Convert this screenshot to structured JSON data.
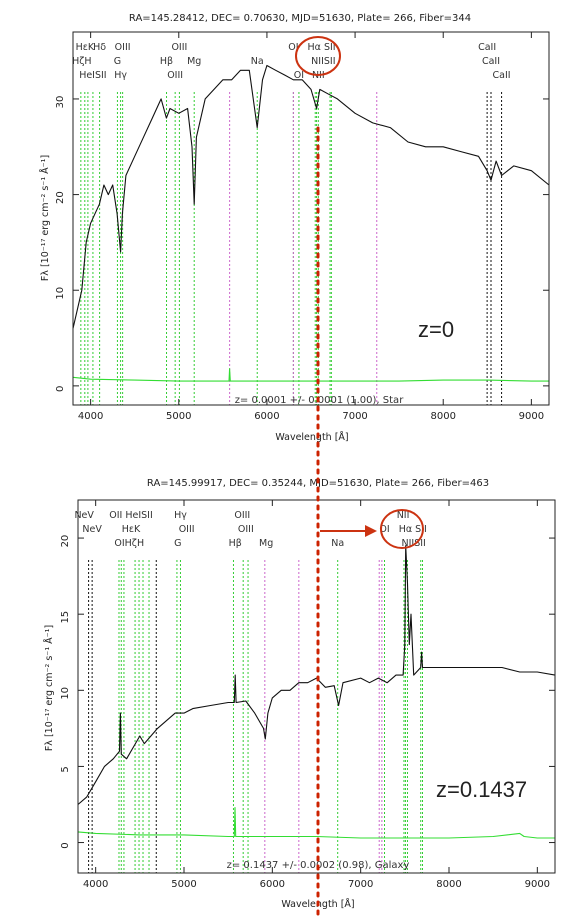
{
  "chart_data": [
    {
      "type": "line",
      "title": "RA=145.28412, DEC= 0.70630, MJD=51630, Plate= 266, Fiber=344",
      "xlabel": "Wavelength [Å]",
      "ylabel": "Fλ [10⁻¹⁷ erg cm⁻² s⁻¹ Å⁻¹]",
      "xlim": [
        3800,
        9200
      ],
      "ylim": [
        -2,
        37
      ],
      "x_ticks": [
        "4000",
        "5000",
        "6000",
        "7000",
        "8000",
        "9000"
      ],
      "x_tick_values": [
        4000,
        5000,
        6000,
        7000,
        8000,
        9000
      ],
      "y_ticks": [
        "0",
        "10",
        "20",
        "30"
      ],
      "y_tick_values": [
        0,
        10,
        20,
        30
      ],
      "fit_label": "z= 0.0001 +/- 0.0001 (1.00), Star",
      "annotation": "z=0",
      "series": [
        {
          "color": "#111111",
          "x": [
            3800,
            3850,
            3900,
            3950,
            4000,
            4050,
            4100,
            4150,
            4200,
            4250,
            4300,
            4340,
            4360,
            4400,
            4500,
            4600,
            4700,
            4800,
            4860,
            4900,
            5000,
            5100,
            5150,
            5175,
            5200,
            5300,
            5400,
            5500,
            5600,
            5700,
            5800,
            5890,
            5950,
            6000,
            6100,
            6200,
            6300,
            6400,
            6500,
            6563,
            6600,
            6700,
            6800,
            7000,
            7200,
            7400,
            7600,
            7800,
            8000,
            8200,
            8400,
            8498,
            8542,
            8600,
            8662,
            8800,
            9000,
            9200
          ],
          "y": [
            6,
            8,
            10,
            15,
            17,
            18,
            19,
            21,
            20,
            21,
            18,
            14,
            18,
            22,
            24,
            26,
            28,
            30,
            28,
            29,
            28.5,
            29,
            25,
            19,
            26,
            30,
            31,
            32,
            32,
            33,
            33,
            27,
            32,
            33.5,
            33,
            32.5,
            32,
            32,
            31,
            29,
            31,
            30.5,
            30,
            28.5,
            27.5,
            27,
            25.5,
            25,
            25,
            24.5,
            24,
            22.5,
            21.5,
            23.5,
            22,
            23,
            22.5,
            21
          ]
        },
        {
          "color": "#33dd33",
          "x": [
            3800,
            4000,
            4500,
            5000,
            5500,
            5570,
            5577,
            5585,
            6000,
            6300,
            6500,
            7000,
            7500,
            8000,
            8500,
            9000,
            9200
          ],
          "y": [
            0.9,
            0.7,
            0.6,
            0.5,
            0.5,
            0.5,
            1.8,
            0.5,
            0.5,
            0.5,
            0.5,
            0.5,
            0.5,
            0.6,
            0.6,
            0.5,
            0.5
          ]
        }
      ],
      "line_markers": [
        {
          "x": 3889,
          "color": "#33cc33"
        },
        {
          "x": 3934,
          "color": "#33cc33"
        },
        {
          "x": 3969,
          "color": "#33cc33"
        },
        {
          "x": 4026,
          "color": "#33cc33"
        },
        {
          "x": 4102,
          "color": "#33cc33"
        },
        {
          "x": 4304,
          "color": "#33cc33"
        },
        {
          "x": 4340,
          "color": "#33cc33"
        },
        {
          "x": 4363,
          "color": "#33cc33"
        },
        {
          "x": 4861,
          "color": "#33cc33"
        },
        {
          "x": 4959,
          "color": "#33cc33"
        },
        {
          "x": 5007,
          "color": "#33cc33"
        },
        {
          "x": 5175,
          "color": "#33cc33"
        },
        {
          "x": 5577,
          "color": "#cc66cc"
        },
        {
          "x": 5890,
          "color": "#33cc33"
        },
        {
          "x": 6300,
          "color": "#33cc33"
        },
        {
          "x": 6363,
          "color": "#33cc33"
        },
        {
          "x": 6548,
          "color": "#33cc33"
        },
        {
          "x": 6563,
          "color": "#33cc33"
        },
        {
          "x": 6583,
          "color": "#33cc33"
        },
        {
          "x": 6716,
          "color": "#33cc33"
        },
        {
          "x": 6731,
          "color": "#33cc33"
        },
        {
          "x": 6300,
          "color": "#cc66cc"
        },
        {
          "x": 7246,
          "color": "#cc66cc"
        },
        {
          "x": 8498,
          "color": "#111111"
        },
        {
          "x": 8542,
          "color": "#111111"
        },
        {
          "x": 8662,
          "color": "#111111"
        }
      ],
      "line_labels": [
        {
          "text": "HεK",
          "x": 3935,
          "row": 1
        },
        {
          "text": "Hδ",
          "x": 4102,
          "row": 1
        },
        {
          "text": "OIII",
          "x": 4363,
          "row": 1
        },
        {
          "text": "OIII",
          "x": 5007,
          "row": 1
        },
        {
          "text": "OI",
          "x": 6300,
          "row": 1
        },
        {
          "text": "Hα SII",
          "x": 6620,
          "row": 1
        },
        {
          "text": "CaII",
          "x": 8498,
          "row": 1
        },
        {
          "text": "HζH",
          "x": 3900,
          "row": 2
        },
        {
          "text": "G",
          "x": 4304,
          "row": 2
        },
        {
          "text": "Hβ",
          "x": 4861,
          "row": 2
        },
        {
          "text": "Mg",
          "x": 5175,
          "row": 2
        },
        {
          "text": "Na",
          "x": 5890,
          "row": 2
        },
        {
          "text": "NIISII",
          "x": 6640,
          "row": 2
        },
        {
          "text": "CaII",
          "x": 8542,
          "row": 2
        },
        {
          "text": "HeISII",
          "x": 4026,
          "row": 3
        },
        {
          "text": "Hγ",
          "x": 4340,
          "row": 3
        },
        {
          "text": "OIII",
          "x": 4959,
          "row": 3
        },
        {
          "text": "OI",
          "x": 6363,
          "row": 3
        },
        {
          "text": "NII",
          "x": 6583,
          "row": 3
        },
        {
          "text": "CaII",
          "x": 8662,
          "row": 3
        }
      ]
    },
    {
      "type": "line",
      "title": "RA=145.99917, DEC= 0.35244, MJD=51630, Plate= 266, Fiber=463",
      "xlabel": "Wavelength [Å]",
      "ylabel": "Fλ [10⁻¹⁷ erg cm⁻² s⁻¹ Å⁻¹]",
      "xlim": [
        3800,
        9200
      ],
      "ylim": [
        -2,
        22.5
      ],
      "x_ticks": [
        "4000",
        "5000",
        "6000",
        "7000",
        "8000",
        "9000"
      ],
      "x_tick_values": [
        4000,
        5000,
        6000,
        7000,
        8000,
        9000
      ],
      "y_ticks": [
        "0",
        "5",
        "10",
        "15",
        "20"
      ],
      "y_tick_values": [
        0,
        5,
        10,
        15,
        20
      ],
      "fit_label": "z= 0.1437 +/- 0.0002 (0.98), Galaxy",
      "annotation": "z=0.1437",
      "series": [
        {
          "color": "#111111",
          "x": [
            3800,
            3900,
            4000,
            4100,
            4200,
            4270,
            4280,
            4290,
            4350,
            4450,
            4500,
            4550,
            4700,
            4900,
            5000,
            5100,
            5300,
            5500,
            5570,
            5580,
            5590,
            5700,
            5800,
            5900,
            5920,
            5950,
            6000,
            6100,
            6200,
            6300,
            6400,
            6500,
            6600,
            6700,
            6750,
            6800,
            7000,
            7100,
            7200,
            7300,
            7400,
            7480,
            7500,
            7510,
            7530,
            7550,
            7570,
            7600,
            7680,
            7690,
            7700,
            7800,
            8000,
            8200,
            8400,
            8600,
            8800,
            9000,
            9200
          ],
          "y": [
            2.5,
            3,
            4,
            5,
            5.5,
            6,
            8.5,
            5.8,
            5.5,
            6.5,
            7,
            6.5,
            7.5,
            8.5,
            8.5,
            8.8,
            9,
            9.2,
            9.2,
            11,
            9.2,
            9.3,
            8.5,
            7.5,
            6.8,
            8.5,
            9.5,
            10,
            10,
            10.5,
            10.5,
            10.8,
            10.2,
            10.3,
            9,
            10.5,
            10.8,
            10.5,
            10.8,
            10.5,
            11,
            11,
            13,
            19.5,
            17,
            13,
            15,
            11,
            11.5,
            12.5,
            11.5,
            11.5,
            11.5,
            11.5,
            11.5,
            11.5,
            11.2,
            11.2,
            11
          ]
        },
        {
          "color": "#33dd33",
          "x": [
            3800,
            4000,
            4500,
            5000,
            5500,
            5570,
            5577,
            5585,
            6000,
            6500,
            7000,
            7500,
            8000,
            8500,
            8800,
            8850,
            9000,
            9200
          ],
          "y": [
            0.7,
            0.6,
            0.5,
            0.5,
            0.4,
            0.4,
            2.3,
            0.4,
            0.4,
            0.4,
            0.3,
            0.3,
            0.3,
            0.4,
            0.6,
            0.4,
            0.3,
            0.3
          ]
        }
      ],
      "line_markers": [
        {
          "x": 3920,
          "color": "#111111"
        },
        {
          "x": 3960,
          "color": "#111111"
        },
        {
          "x": 4264,
          "color": "#33cc33"
        },
        {
          "x": 4290,
          "color": "#33cc33"
        },
        {
          "x": 4320,
          "color": "#33cc33"
        },
        {
          "x": 4446,
          "color": "#33cc33"
        },
        {
          "x": 4491,
          "color": "#33cc33"
        },
        {
          "x": 4536,
          "color": "#33cc33"
        },
        {
          "x": 4604,
          "color": "#33cc33"
        },
        {
          "x": 4686,
          "color": "#111111"
        },
        {
          "x": 4920,
          "color": "#33cc33"
        },
        {
          "x": 4960,
          "color": "#33cc33"
        },
        {
          "x": 5560,
          "color": "#33cc33"
        },
        {
          "x": 5670,
          "color": "#33cc33"
        },
        {
          "x": 5725,
          "color": "#33cc33"
        },
        {
          "x": 5915,
          "color": "#cc66cc"
        },
        {
          "x": 6300,
          "color": "#cc66cc"
        },
        {
          "x": 6740,
          "color": "#33cc33"
        },
        {
          "x": 7210,
          "color": "#cc66cc"
        },
        {
          "x": 7240,
          "color": "#cc66cc"
        },
        {
          "x": 7270,
          "color": "#33cc33"
        },
        {
          "x": 7490,
          "color": "#33cc33"
        },
        {
          "x": 7507,
          "color": "#33cc33"
        },
        {
          "x": 7530,
          "color": "#33cc33"
        },
        {
          "x": 7680,
          "color": "#33cc33"
        },
        {
          "x": 7700,
          "color": "#33cc33"
        }
      ],
      "line_labels": [
        {
          "text": "NeV",
          "x": 3870,
          "row": 1
        },
        {
          "text": "OII HeISII",
          "x": 4400,
          "row": 1
        },
        {
          "text": "Hγ",
          "x": 4960,
          "row": 1
        },
        {
          "text": "OIII",
          "x": 5660,
          "row": 1
        },
        {
          "text": "NII",
          "x": 7480,
          "row": 1
        },
        {
          "text": "NeV",
          "x": 3960,
          "row": 2
        },
        {
          "text": "HεK",
          "x": 4400,
          "row": 2
        },
        {
          "text": "OIII",
          "x": 5030,
          "row": 2
        },
        {
          "text": "OIII",
          "x": 5700,
          "row": 2
        },
        {
          "text": "OI",
          "x": 7270,
          "row": 2
        },
        {
          "text": "Hα SII",
          "x": 7590,
          "row": 2
        },
        {
          "text": "OIHζH",
          "x": 4380,
          "row": 3
        },
        {
          "text": "G",
          "x": 4930,
          "row": 3
        },
        {
          "text": "Hβ",
          "x": 5580,
          "row": 3
        },
        {
          "text": "Mg",
          "x": 5930,
          "row": 3
        },
        {
          "text": "Na",
          "x": 6740,
          "row": 3
        },
        {
          "text": "NIISII",
          "x": 7600,
          "row": 3
        }
      ]
    }
  ],
  "overlay": {
    "reference_line_color": "#cc2200",
    "circle_color": "#cc3311",
    "arrow_color": "#cc3311"
  }
}
